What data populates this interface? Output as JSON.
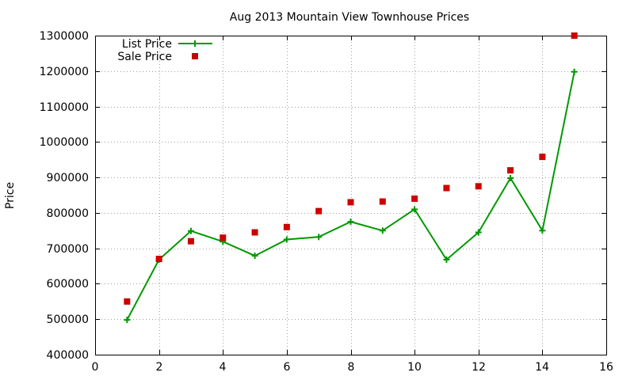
{
  "chart_data": {
    "type": "line",
    "title": "Aug 2013 Mountain View Townhouse Prices",
    "xlabel": "",
    "ylabel": "Price",
    "xlim": [
      0,
      16
    ],
    "ylim": [
      400000,
      1300000
    ],
    "xticks": [
      0,
      2,
      4,
      6,
      8,
      10,
      12,
      14,
      16
    ],
    "yticks": [
      400000,
      500000,
      600000,
      700000,
      800000,
      900000,
      1000000,
      1100000,
      1200000,
      1300000
    ],
    "grid": true,
    "legend_position": "top-left",
    "series": [
      {
        "name": "List Price",
        "style": "line-plus",
        "color": "#009900",
        "x": [
          1,
          2,
          3,
          4,
          5,
          6,
          7,
          8,
          9,
          10,
          11,
          12,
          13,
          14,
          15
        ],
        "y": [
          498000,
          668000,
          749000,
          719000,
          679000,
          725000,
          732000,
          775000,
          750000,
          810000,
          668000,
          745000,
          898000,
          750000,
          1198000
        ]
      },
      {
        "name": "Sale Price",
        "style": "square",
        "color": "#cc0000",
        "x": [
          1,
          2,
          3,
          4,
          5,
          6,
          7,
          8,
          9,
          10,
          11,
          12,
          13,
          14,
          15
        ],
        "y": [
          550000,
          670000,
          720000,
          730000,
          745000,
          760000,
          805000,
          830000,
          832000,
          840000,
          870000,
          875000,
          920000,
          958000,
          1300000
        ]
      }
    ]
  }
}
